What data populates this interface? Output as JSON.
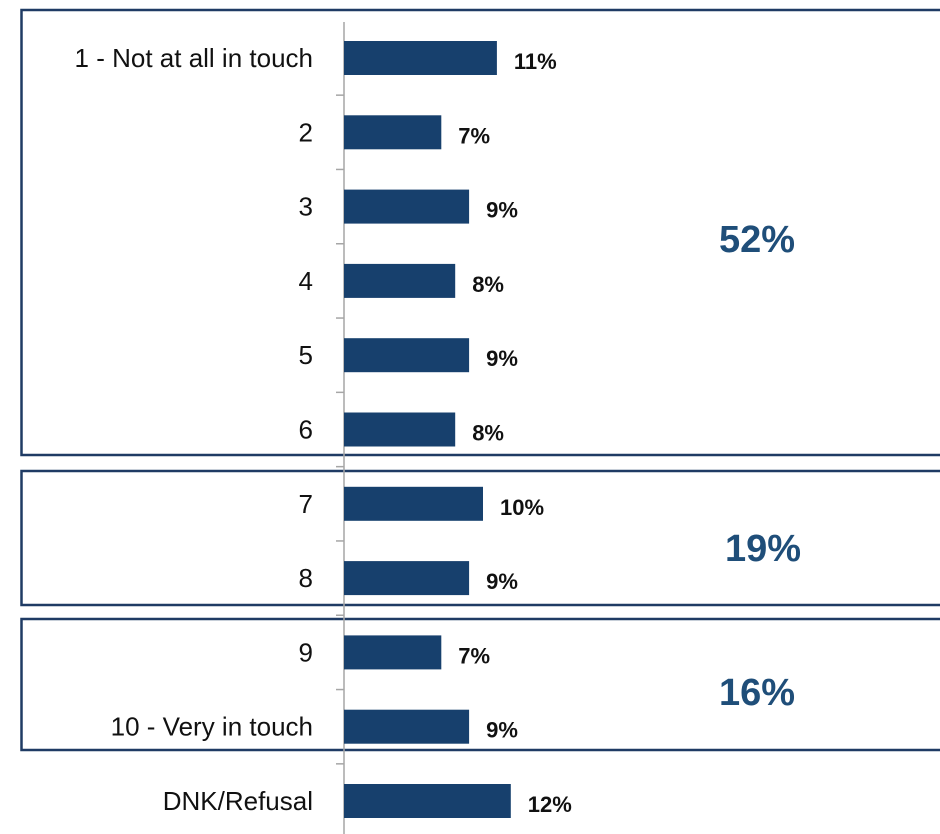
{
  "chart_data": {
    "type": "bar",
    "orientation": "horizontal",
    "categories": [
      "1 - Not at all in touch",
      "2",
      "3",
      "4",
      "5",
      "6",
      "7",
      "8",
      "9",
      "10 - Very in touch",
      "DNK/Refusal"
    ],
    "values": [
      11,
      7,
      9,
      8,
      9,
      8,
      10,
      9,
      7,
      9,
      12
    ],
    "value_labels": [
      "11%",
      "7%",
      "9%",
      "8%",
      "9%",
      "8%",
      "10%",
      "9%",
      "7%",
      "9%",
      "12%"
    ],
    "xlim": [
      0,
      14
    ],
    "grid": false,
    "groups": [
      {
        "categories": [
          "1 - Not at all in touch",
          "2",
          "3",
          "4",
          "5",
          "6"
        ],
        "total_label": "52%"
      },
      {
        "categories": [
          "7",
          "8"
        ],
        "total_label": "19%"
      },
      {
        "categories": [
          "9",
          "10 - Very in touch"
        ],
        "total_label": "16%"
      }
    ],
    "colors": {
      "bar": "#17406D",
      "group_border": "#1F3B64",
      "group_total": "#1F4E79",
      "axis": "#A6A6A6"
    }
  }
}
